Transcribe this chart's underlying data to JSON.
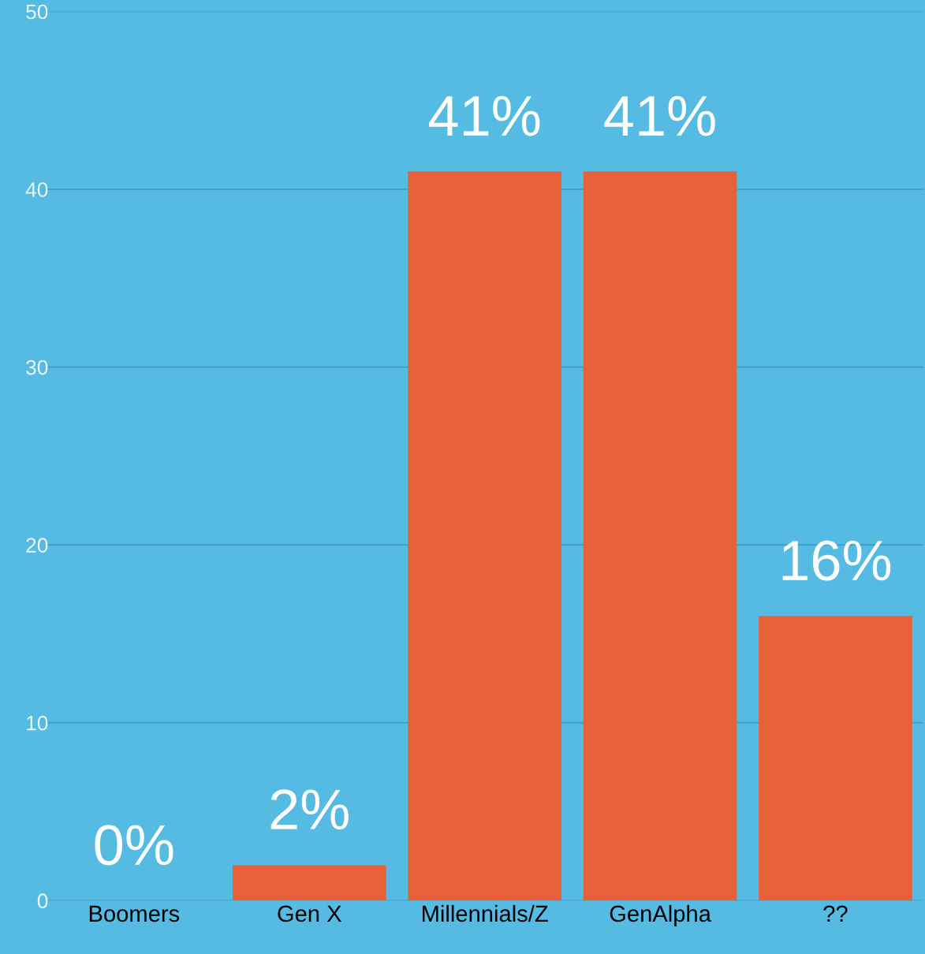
{
  "chart_data": {
    "type": "bar",
    "categories": [
      "Boomers",
      "Gen X",
      "Millennials/Z",
      "GenAlpha",
      "??"
    ],
    "values": [
      0,
      2,
      41,
      41,
      16
    ],
    "value_labels": [
      "0%",
      "2%",
      "41%",
      "41%",
      "16%"
    ],
    "color": "#e8603a",
    "ylim": [
      0,
      50
    ],
    "yticks": [
      0,
      10,
      20,
      30,
      40,
      50
    ],
    "grid": "y"
  }
}
